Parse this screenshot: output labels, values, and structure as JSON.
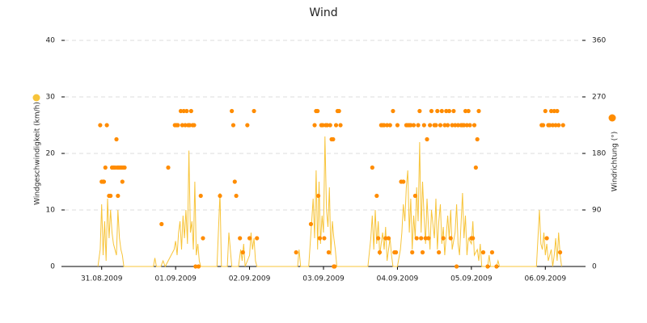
{
  "chart_data": {
    "type": "line-scatter",
    "title": "Wind",
    "y_label": "Windgeschwindigkeit (km/h)",
    "y2_label": "Windrichtung (°)",
    "xlim": [
      0,
      7
    ],
    "xticks": [
      {
        "value": 0.5,
        "label": "31.08.2009"
      },
      {
        "value": 1.5,
        "label": "01.09.2009"
      },
      {
        "value": 2.5,
        "label": "02.09.2009"
      },
      {
        "value": 3.5,
        "label": "03.09.2009"
      },
      {
        "value": 4.5,
        "label": "04.09.2009"
      },
      {
        "value": 5.5,
        "label": "05.09.2009"
      },
      {
        "value": 6.5,
        "label": "06.09.2009"
      }
    ],
    "ylim": [
      0,
      40
    ],
    "yticks": [
      0,
      10,
      20,
      30,
      40
    ],
    "y2lim": [
      0,
      360
    ],
    "y2ticks": [
      0,
      90,
      180,
      270,
      360
    ],
    "grid": true,
    "series": [
      {
        "color": "#f7c43a",
        "axis": "y",
        "kind": "line",
        "x": [
          0.45,
          0.48,
          0.5,
          0.52,
          0.54,
          0.56,
          0.58,
          0.6,
          0.62,
          0.64,
          0.66,
          0.7,
          0.72,
          0.74,
          0.76,
          0.78,
          0.8,
          1.2,
          1.22,
          1.24,
          1.3,
          1.33,
          1.36,
          1.48,
          1.5,
          1.52,
          1.54,
          1.56,
          1.58,
          1.6,
          1.62,
          1.64,
          1.66,
          1.68,
          1.7,
          1.72,
          1.74,
          1.76,
          1.78,
          1.8,
          1.82,
          1.84,
          2.06,
          2.1,
          2.12,
          2.2,
          2.22,
          2.24,
          2.26,
          2.35,
          2.38,
          2.4,
          2.42,
          2.44,
          2.5,
          2.52,
          2.54,
          2.56,
          2.58,
          2.6,
          3.15,
          3.17,
          3.19,
          3.3,
          3.34,
          3.36,
          3.38,
          3.4,
          3.42,
          3.44,
          3.46,
          3.48,
          3.5,
          3.52,
          3.54,
          3.56,
          3.58,
          3.6,
          3.62,
          3.64,
          3.66,
          3.68,
          4.1,
          4.14,
          4.16,
          4.18,
          4.2,
          4.22,
          4.24,
          4.26,
          4.3,
          4.32,
          4.34,
          4.36,
          4.4,
          4.42,
          4.44,
          4.5,
          4.54,
          4.56,
          4.58,
          4.6,
          4.62,
          4.64,
          4.66,
          4.68,
          4.7,
          4.72,
          4.74,
          4.76,
          4.78,
          4.8,
          4.82,
          4.84,
          4.86,
          4.88,
          4.9,
          4.92,
          4.94,
          4.96,
          5.0,
          5.02,
          5.04,
          5.06,
          5.08,
          5.1,
          5.12,
          5.14,
          5.18,
          5.2,
          5.22,
          5.24,
          5.28,
          5.3,
          5.32,
          5.34,
          5.38,
          5.4,
          5.42,
          5.44,
          5.46,
          5.5,
          5.52,
          5.54,
          5.58,
          5.6,
          5.62,
          5.64,
          5.72,
          5.74,
          5.76,
          5.84,
          5.86,
          5.88,
          6.38,
          6.42,
          6.44,
          6.46,
          6.48,
          6.5,
          6.52,
          6.54,
          6.58,
          6.6,
          6.62,
          6.64,
          6.66,
          6.68,
          6.7,
          6.72
        ],
        "values": [
          0,
          3,
          11,
          2,
          8,
          1,
          12,
          5,
          10,
          6,
          4,
          2,
          10,
          5,
          3,
          2,
          0,
          0,
          1.5,
          0,
          0,
          1,
          0,
          3,
          4.5,
          2,
          6,
          8,
          3,
          9,
          5,
          10,
          4,
          20.5,
          6,
          8,
          3,
          15,
          2,
          4,
          1,
          0,
          0,
          13,
          0,
          0,
          6,
          3,
          0,
          0,
          3,
          1,
          4,
          0,
          2,
          6,
          3,
          5,
          1,
          0,
          0,
          3,
          0,
          0,
          8,
          12,
          5,
          17,
          3,
          15,
          4,
          9,
          6,
          23,
          10,
          7,
          14,
          2,
          8,
          5,
          3,
          0,
          0,
          5,
          9,
          3,
          10,
          4,
          8,
          2,
          6,
          3,
          7,
          1,
          5,
          2,
          0,
          0,
          3,
          6,
          11,
          8,
          14,
          17,
          6,
          12,
          3,
          9,
          5,
          14,
          8,
          22,
          6,
          15,
          9,
          4,
          12,
          7,
          3,
          10,
          5,
          12,
          3,
          8,
          11,
          4,
          7,
          2,
          9,
          5,
          10,
          3,
          6,
          11,
          4,
          2,
          13,
          5,
          9,
          2,
          5,
          4,
          8,
          2,
          3,
          1,
          4,
          0,
          0,
          2,
          0,
          0,
          1,
          0,
          0,
          10,
          4,
          3,
          6,
          2,
          4,
          1,
          3,
          0,
          2,
          5,
          1,
          6,
          2,
          0
        ]
      },
      {
        "color": "#ff8c00",
        "axis": "y2",
        "kind": "scatter",
        "x": [
          0.48,
          0.5,
          0.52,
          0.53,
          0.55,
          0.57,
          0.6,
          0.62,
          0.64,
          0.66,
          0.68,
          0.7,
          0.71,
          0.72,
          0.73,
          0.75,
          0.77,
          0.78,
          0.79,
          0.81,
          1.31,
          1.4,
          1.49,
          1.51,
          1.53,
          1.57,
          1.59,
          1.61,
          1.63,
          1.65,
          1.67,
          1.69,
          1.71,
          1.73,
          1.75,
          1.77,
          1.81,
          1.84,
          1.87,
          2.1,
          2.26,
          2.28,
          2.3,
          2.32,
          2.37,
          2.41,
          2.47,
          2.5,
          2.56,
          2.6,
          3.13,
          3.33,
          3.38,
          3.4,
          3.42,
          3.43,
          3.45,
          3.47,
          3.49,
          3.51,
          3.53,
          3.55,
          3.57,
          3.59,
          3.61,
          3.63,
          3.64,
          3.65,
          3.67,
          3.69,
          3.71,
          3.73,
          4.16,
          4.22,
          4.24,
          4.26,
          4.28,
          4.3,
          4.32,
          4.34,
          4.36,
          4.38,
          4.4,
          4.44,
          4.46,
          4.48,
          4.5,
          4.55,
          4.58,
          4.62,
          4.64,
          4.66,
          4.68,
          4.7,
          4.72,
          4.74,
          4.76,
          4.78,
          4.8,
          4.82,
          4.84,
          4.86,
          4.88,
          4.9,
          4.92,
          4.94,
          4.96,
          5.0,
          5.02,
          5.04,
          5.06,
          5.08,
          5.1,
          5.12,
          5.14,
          5.16,
          5.18,
          5.2,
          5.22,
          5.24,
          5.26,
          5.28,
          5.3,
          5.32,
          5.36,
          5.38,
          5.4,
          5.42,
          5.44,
          5.46,
          5.48,
          5.5,
          5.52,
          5.54,
          5.56,
          5.58,
          5.6,
          5.66,
          5.72,
          5.78,
          5.84,
          6.45,
          6.47,
          6.5,
          6.52,
          6.54,
          6.56,
          6.58,
          6.6,
          6.62,
          6.64,
          6.66,
          6.68,
          6.7,
          6.74
        ],
        "values": [
          225,
          135,
          135,
          135,
          157.5,
          225,
          112.5,
          112.5,
          157.5,
          157.5,
          157.5,
          202.5,
          157.5,
          112.5,
          157.5,
          157.5,
          157.5,
          135,
          157.5,
          157.5,
          67.5,
          157.5,
          225,
          225,
          225,
          247.5,
          225,
          247.5,
          225,
          247.5,
          225,
          225,
          247.5,
          225,
          225,
          0,
          0,
          112.5,
          45,
          112.5,
          247.5,
          225,
          135,
          112.5,
          45,
          22.5,
          225,
          45,
          247.5,
          45,
          22.5,
          67.5,
          225,
          247.5,
          247.5,
          112.5,
          45,
          225,
          225,
          45,
          225,
          225,
          22.5,
          225,
          202.5,
          202.5,
          0,
          0,
          225,
          247.5,
          247.5,
          225,
          157.5,
          112.5,
          45,
          22.5,
          225,
          225,
          225,
          45,
          225,
          45,
          225,
          247.5,
          22.5,
          22.5,
          225,
          135,
          135,
          225,
          225,
          225,
          225,
          22.5,
          225,
          112.5,
          45,
          225,
          247.5,
          45,
          22.5,
          225,
          45,
          202.5,
          45,
          225,
          247.5,
          225,
          225,
          247.5,
          22.5,
          225,
          247.5,
          45,
          225,
          247.5,
          225,
          247.5,
          45,
          225,
          247.5,
          225,
          0,
          225,
          225,
          225,
          225,
          247.5,
          225,
          247.5,
          225,
          45,
          45,
          225,
          157.5,
          202.5,
          247.5,
          22.5,
          0,
          22.5,
          0,
          225,
          225,
          247.5,
          45,
          225,
          225,
          247.5,
          225,
          247.5,
          225,
          247.5,
          225,
          22.5,
          225
        ]
      }
    ]
  }
}
